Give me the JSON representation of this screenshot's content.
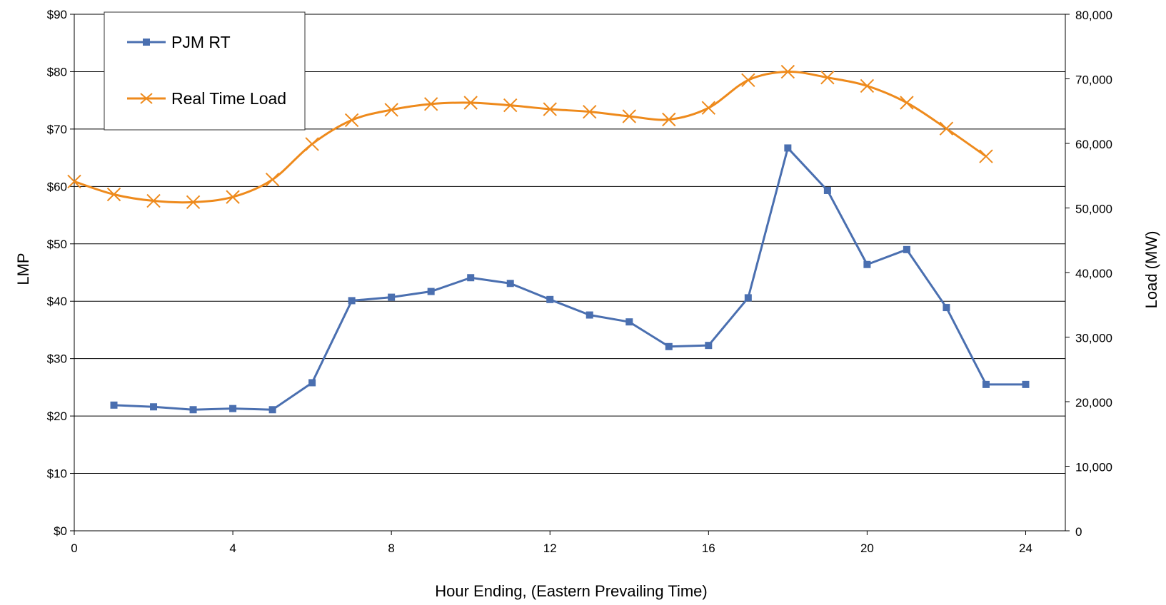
{
  "chart_data": {
    "type": "line",
    "title": "",
    "xlabel": "Hour Ending, (Eastern Prevailing Time)",
    "ylabel_left": "LMP",
    "ylabel_right": "Load (MW)",
    "xlim": [
      0,
      25
    ],
    "xticks": [
      0,
      4,
      8,
      12,
      16,
      20,
      24
    ],
    "xtick_labels": [
      "0",
      "4",
      "8",
      "12",
      "16",
      "20",
      "24"
    ],
    "ylim_left": [
      0,
      90
    ],
    "yticks_left": [
      0,
      10,
      20,
      30,
      40,
      50,
      60,
      70,
      80,
      90
    ],
    "ytick_labels_left": [
      "$0",
      "$10",
      "$20",
      "$30",
      "$40",
      "$50",
      "$60",
      "$70",
      "$80",
      "$90"
    ],
    "ylim_right": [
      0,
      80000
    ],
    "yticks_right": [
      0,
      10000,
      20000,
      30000,
      40000,
      50000,
      60000,
      70000,
      80000
    ],
    "ytick_labels_right": [
      "0",
      "10,000",
      "20,000",
      "30,000",
      "40,000",
      "50,000",
      "60,000",
      "70,000",
      "80,000"
    ],
    "grid": "horizontal",
    "legend_position": "top-left",
    "series": [
      {
        "name": "PJM RT",
        "axis": "left",
        "color": "#4a6fb0",
        "marker": "square",
        "x": [
          1,
          2,
          3,
          4,
          5,
          6,
          7,
          8,
          9,
          10,
          11,
          12,
          13,
          14,
          15,
          16,
          17,
          18,
          19,
          20,
          21,
          22,
          23,
          24
        ],
        "values": [
          21.9,
          21.6,
          21.1,
          21.3,
          21.1,
          25.8,
          40.1,
          40.7,
          41.7,
          44.1,
          43.1,
          40.3,
          37.6,
          36.4,
          32.1,
          32.3,
          40.6,
          66.7,
          59.3,
          46.4,
          49.0,
          38.9,
          25.5,
          25.5
        ]
      },
      {
        "name": "Real Time Load",
        "axis": "right",
        "color": "#ee8a1c",
        "marker": "x",
        "x": [
          0,
          1,
          2,
          3,
          4,
          5,
          6,
          7,
          8,
          9,
          10,
          11,
          12,
          13,
          14,
          15,
          16,
          17,
          18,
          19,
          20,
          21,
          22,
          23
        ],
        "values": [
          54100,
          52100,
          51100,
          50900,
          51700,
          54400,
          59900,
          63600,
          65200,
          66100,
          66300,
          65900,
          65300,
          64900,
          64200,
          63700,
          65500,
          69800,
          71100,
          70200,
          68900,
          66300,
          62300,
          58000
        ]
      }
    ]
  }
}
